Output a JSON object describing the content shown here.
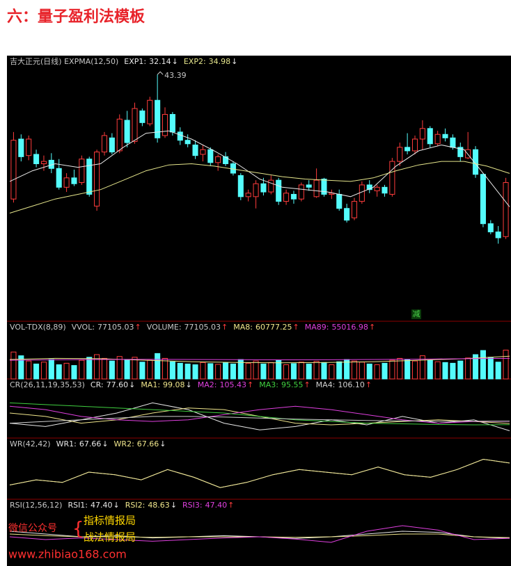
{
  "heading": "六：量子盈利法模板",
  "chart_data": [
    {
      "type": "candlestick",
      "title": "吉大正元(日线) EXPMA(12,50)",
      "ylim": [
        22.4,
        45
      ],
      "marker": "减",
      "up_color": "#ff3c3c",
      "down_color": "#54fcfc",
      "candles": [
        [
          32.8,
          38.5,
          32.5,
          37.8
        ],
        [
          37.9,
          38.3,
          36.0,
          36.4
        ],
        [
          36.5,
          38.2,
          36.1,
          37.9
        ],
        [
          36.6,
          37.0,
          35.5,
          35.8
        ],
        [
          35.8,
          36.5,
          35.2,
          36.0
        ],
        [
          36.1,
          36.7,
          35.0,
          35.4
        ],
        [
          35.4,
          36.2,
          33.6,
          33.8
        ],
        [
          33.8,
          35.0,
          33.4,
          34.6
        ],
        [
          34.6,
          35.3,
          33.9,
          34.1
        ],
        [
          34.2,
          36.5,
          34.0,
          36.2
        ],
        [
          36.2,
          36.4,
          33.0,
          33.2
        ],
        [
          32.2,
          37.0,
          31.8,
          36.8
        ],
        [
          36.8,
          38.5,
          36.5,
          38.2
        ],
        [
          38.0,
          38.4,
          36.6,
          36.8
        ],
        [
          36.9,
          40.0,
          36.7,
          39.6
        ],
        [
          39.5,
          40.3,
          37.2,
          37.6
        ],
        [
          37.7,
          41.0,
          37.5,
          40.5
        ],
        [
          40.3,
          40.5,
          39.0,
          39.3
        ],
        [
          39.2,
          41.5,
          39.0,
          41.2
        ],
        [
          41.2,
          43.39,
          37.6,
          38.0
        ],
        [
          38.2,
          40.6,
          38.0,
          40.0
        ],
        [
          40.0,
          40.2,
          38.2,
          38.5
        ],
        [
          38.5,
          38.9,
          37.4,
          37.8
        ],
        [
          37.8,
          38.3,
          37.2,
          37.5
        ],
        [
          37.4,
          37.8,
          36.2,
          36.5
        ],
        [
          36.6,
          37.4,
          36.0,
          37.0
        ],
        [
          37.0,
          37.2,
          35.6,
          35.9
        ],
        [
          35.9,
          36.6,
          35.2,
          36.4
        ],
        [
          36.4,
          36.8,
          35.6,
          35.8
        ],
        [
          35.8,
          36.0,
          34.8,
          35.0
        ],
        [
          34.8,
          35.0,
          32.7,
          33.0
        ],
        [
          33.0,
          33.6,
          32.6,
          33.3
        ],
        [
          33.0,
          34.4,
          32.0,
          34.1
        ],
        [
          34.1,
          34.6,
          33.1,
          33.4
        ],
        [
          33.4,
          34.8,
          33.2,
          34.4
        ],
        [
          34.4,
          34.6,
          32.3,
          32.6
        ],
        [
          32.6,
          33.6,
          32.3,
          33.3
        ],
        [
          33.2,
          33.5,
          32.4,
          32.8
        ],
        [
          32.8,
          34.2,
          32.6,
          34.0
        ],
        [
          34.0,
          34.4,
          33.5,
          33.8
        ],
        [
          33.0,
          35.4,
          32.9,
          34.4
        ],
        [
          34.5,
          34.6,
          33.0,
          33.2
        ],
        [
          33.2,
          33.6,
          32.8,
          33.3
        ],
        [
          33.2,
          33.6,
          31.8,
          32.0
        ],
        [
          32.0,
          32.4,
          30.8,
          31.0
        ],
        [
          31.2,
          32.9,
          31.0,
          32.6
        ],
        [
          32.6,
          34.3,
          32.4,
          34.0
        ],
        [
          34.0,
          34.4,
          33.3,
          33.6
        ],
        [
          33.5,
          34.0,
          33.0,
          33.8
        ],
        [
          33.8,
          34.0,
          33.0,
          33.3
        ],
        [
          33.2,
          36.3,
          33.0,
          36.0
        ],
        [
          36.0,
          37.6,
          35.6,
          37.2
        ],
        [
          37.2,
          38.4,
          36.6,
          36.9
        ],
        [
          36.9,
          38.2,
          36.6,
          37.9
        ],
        [
          37.9,
          39.5,
          37.0,
          38.8
        ],
        [
          38.8,
          39.0,
          37.2,
          37.5
        ],
        [
          37.5,
          38.6,
          37.3,
          38.3
        ],
        [
          38.3,
          38.8,
          37.7,
          38.0
        ],
        [
          38.0,
          38.3,
          37.0,
          37.2
        ],
        [
          37.2,
          37.6,
          36.0,
          36.4
        ],
        [
          36.3,
          38.5,
          36.2,
          37.0
        ],
        [
          37.0,
          37.3,
          34.6,
          34.9
        ],
        [
          34.9,
          35.0,
          30.4,
          30.7
        ],
        [
          30.7,
          31.0,
          29.8,
          30.0
        ],
        [
          30.0,
          30.5,
          29.0,
          29.5
        ],
        [
          29.6,
          34.6,
          29.4,
          34.2
        ]
      ],
      "series": [
        {
          "name": "EXP1:",
          "color": "#e8e8e8",
          "value_label": "32.14",
          "values": [
            34.3,
            35.2,
            35.8,
            35.5,
            35.8,
            37.2,
            38.4,
            38.6,
            37.9,
            36.9,
            35.8,
            34.5,
            33.8,
            33.6,
            33.4,
            33.0,
            33.8,
            35.6,
            36.9,
            37.4,
            37.0,
            34.6,
            32.14
          ]
        },
        {
          "name": "EXP2:",
          "color": "#e6e68c",
          "value_label": "34.98",
          "values": [
            31.6,
            32.2,
            32.8,
            33.2,
            33.6,
            34.4,
            35.2,
            35.7,
            35.8,
            35.6,
            35.3,
            35.0,
            34.7,
            34.5,
            34.4,
            34.3,
            34.6,
            35.2,
            35.7,
            36.0,
            36.0,
            35.6,
            34.98
          ]
        }
      ]
    },
    {
      "type": "bar",
      "title": "VOL-TDX(8,89)",
      "ylim": [
        0,
        130000
      ],
      "readouts": [
        {
          "name": "VVOL:",
          "value_label": "77105.03"
        },
        {
          "name": "VOLUME:",
          "value_label": "77105.03"
        }
      ],
      "values": [
        72000,
        62000,
        48000,
        40000,
        45000,
        52000,
        38000,
        42000,
        36000,
        50000,
        58000,
        65000,
        55000,
        48000,
        60000,
        52000,
        58000,
        45000,
        50000,
        68000,
        55000,
        46000,
        42000,
        40000,
        38000,
        44000,
        41000,
        39000,
        43000,
        40000,
        52000,
        42000,
        48000,
        40000,
        44000,
        50000,
        38000,
        41000,
        45000,
        40000,
        47000,
        44000,
        38000,
        46000,
        52000,
        48000,
        45000,
        40000,
        38000,
        42000,
        50000,
        55000,
        52000,
        48000,
        62000,
        50000,
        46000,
        44000,
        42000,
        48000,
        56000,
        65000,
        76000,
        58000,
        45000,
        77105.03
      ],
      "series": [
        {
          "name": "MA8:",
          "color": "#f0e68c",
          "value_label": "60777.25",
          "values": [
            52000,
            55000,
            54000,
            50000,
            46000,
            44000,
            43000,
            44000,
            46000,
            50000,
            54000,
            60777.25
          ]
        },
        {
          "name": "MA89:",
          "color": "#e040e0",
          "value_label": "55016.98",
          "values": [
            50000,
            51000,
            52000,
            52500,
            52000,
            51500,
            51000,
            51200,
            52000,
            53000,
            54000,
            55016.98
          ]
        }
      ]
    },
    {
      "type": "line",
      "title": "CR(26,11,19,35,53)",
      "ylim": [
        60,
        200
      ],
      "series": [
        {
          "name": "CR:",
          "color": "#e8e8e8",
          "value_label": "77.60",
          "values": [
            100,
            90,
            110,
            130,
            160,
            140,
            100,
            80,
            90,
            110,
            95,
            120,
            100,
            110,
            77.6
          ]
        },
        {
          "name": "MA1:",
          "color": "#f0e68c",
          "value_label": "99.08",
          "values": [
            130,
            120,
            100,
            110,
            130,
            145,
            140,
            120,
            100,
            95,
            100,
            105,
            110,
            105,
            99.08
          ]
        },
        {
          "name": "MA2:",
          "color": "#e040e0",
          "value_label": "105.43",
          "values": [
            150,
            140,
            120,
            110,
            105,
            110,
            125,
            140,
            150,
            140,
            125,
            110,
            100,
            105,
            105.43
          ]
        },
        {
          "name": "MA3:",
          "color": "#40d040",
          "value_label": "95.55",
          "values": [
            160,
            155,
            150,
            145,
            140,
            135,
            130,
            120,
            110,
            105,
            100,
            98,
            96,
            95,
            95.55
          ]
        },
        {
          "name": "MA4:",
          "color": "#d0d0d0",
          "value_label": "106.10",
          "values": [
            100,
            105,
            110,
            115,
            120,
            120,
            118,
            115,
            112,
            110,
            108,
            107,
            106,
            106,
            106.1
          ]
        }
      ]
    },
    {
      "type": "line",
      "title": "WR(42,42)",
      "ylim": [
        0,
        100
      ],
      "series": [
        {
          "name": "WR1:",
          "color": "#e8e8e8",
          "value_label": "67.66",
          "values": [
            25,
            35,
            30,
            50,
            45,
            35,
            55,
            40,
            20,
            30,
            45,
            55,
            50,
            45,
            60,
            45,
            40,
            55,
            75,
            67.66
          ]
        },
        {
          "name": "WR2:",
          "color": "#f0e68c",
          "value_label": "67.66",
          "values": [
            25,
            35,
            30,
            50,
            45,
            35,
            55,
            40,
            20,
            30,
            45,
            55,
            50,
            45,
            60,
            45,
            40,
            55,
            75,
            67.66
          ]
        }
      ]
    },
    {
      "type": "line",
      "title": "RSI(12,56,12)",
      "ylim": [
        0,
        100
      ],
      "series": [
        {
          "name": "RSI1:",
          "color": "#e8e8e8",
          "value_label": "47.40",
          "values": [
            60,
            55,
            50,
            52,
            48,
            50,
            52,
            50,
            47,
            50,
            55,
            60,
            58,
            50,
            47.4
          ]
        },
        {
          "name": "RSI2:",
          "color": "#f0e68c",
          "value_label": "48.63",
          "values": [
            55,
            52,
            50,
            50,
            49,
            50,
            50,
            50,
            49,
            50,
            52,
            55,
            55,
            50,
            48.63
          ]
        },
        {
          "name": "RSI3:",
          "color": "#e040e0",
          "value_label": "47.40",
          "values": [
            50,
            45,
            48,
            45,
            42,
            45,
            48,
            50,
            46,
            40,
            60,
            70,
            62,
            45,
            47.4
          ]
        }
      ]
    }
  ],
  "watermark": {
    "label": "微信公众号",
    "lines": [
      "指标情报局",
      "战法情报局"
    ],
    "url": "www.zhibiao168.com"
  }
}
